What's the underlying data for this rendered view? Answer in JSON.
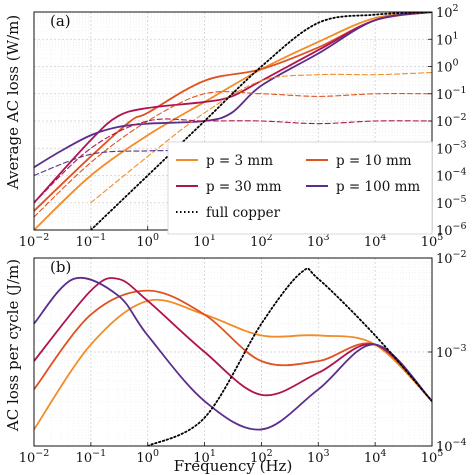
{
  "chart_data": [
    {
      "panel": "(a)",
      "type": "line",
      "ylabel": "Average AC loss (W/m)",
      "xscale": "log",
      "yscale": "log",
      "xlim": [
        0.01,
        100000
      ],
      "ylim": [
        1e-06,
        100
      ],
      "grid": true,
      "x_ticks": [
        "10^-2",
        "10^-1",
        "10^0",
        "10^1",
        "10^2",
        "10^3",
        "10^4",
        "10^5"
      ],
      "y_ticks": [
        "10^-6",
        "10^-5",
        "10^-4",
        "10^-3",
        "10^-2",
        "10^-1",
        "10^0",
        "10^1",
        "10^2"
      ],
      "legend": {
        "placement": "bottom-right",
        "entries": [
          {
            "label": "p = 3 mm",
            "color": "#f28c28",
            "style": "solid"
          },
          {
            "label": "p = 10 mm",
            "color": "#e0521f",
            "style": "solid"
          },
          {
            "label": "p = 30 mm",
            "color": "#b01350",
            "style": "solid"
          },
          {
            "label": "p = 100 mm",
            "color": "#5a2e8a",
            "style": "solid"
          },
          {
            "label": "full copper",
            "color": "#000000",
            "style": "dotted"
          }
        ]
      },
      "series": [
        {
          "name": "p = 3 mm",
          "color": "#f28c28",
          "style": "solid",
          "x": [
            0.01,
            0.1,
            1,
            10,
            100,
            1000,
            10000,
            100000
          ],
          "y": [
            1e-06,
            0.0001,
            0.003,
            0.05,
            0.8,
            8,
            60,
            100
          ]
        },
        {
          "name": "p = 10 mm",
          "color": "#e0521f",
          "style": "solid",
          "x": [
            0.01,
            0.1,
            0.5,
            1,
            10,
            100,
            1000,
            10000,
            100000
          ],
          "y": [
            5e-06,
            0.0005,
            0.01,
            0.02,
            0.3,
            0.8,
            5,
            50,
            100
          ]
        },
        {
          "name": "p = 30 mm",
          "color": "#b01350",
          "style": "solid",
          "x": [
            0.01,
            0.1,
            0.3,
            1,
            10,
            30,
            100,
            1000,
            10000,
            100000
          ],
          "y": [
            1e-05,
            0.002,
            0.015,
            0.03,
            0.05,
            0.08,
            0.3,
            4,
            50,
            100
          ]
        },
        {
          "name": "p = 100 mm",
          "color": "#5a2e8a",
          "style": "solid",
          "x": [
            0.01,
            0.03,
            0.1,
            0.3,
            1,
            10,
            30,
            100,
            1000,
            10000,
            100000
          ],
          "y": [
            0.0002,
            0.0008,
            0.003,
            0.006,
            0.008,
            0.01,
            0.02,
            0.2,
            3,
            50,
            100
          ]
        },
        {
          "name": "p = 3 mm (dashed)",
          "color": "#f28c28",
          "style": "dashed",
          "x": [
            0.1,
            1,
            10,
            100,
            1000,
            10000,
            100000
          ],
          "y": [
            1e-05,
            0.0005,
            0.02,
            0.3,
            0.5,
            0.5,
            0.6
          ]
        },
        {
          "name": "p = 10 mm (dashed)",
          "color": "#e0521f",
          "style": "dashed",
          "x": [
            0.01,
            0.1,
            1,
            10,
            100,
            1000,
            10000,
            100000
          ],
          "y": [
            3e-06,
            0.0003,
            0.01,
            0.1,
            0.1,
            0.08,
            0.1,
            0.1
          ]
        },
        {
          "name": "p = 30 mm (dashed)",
          "color": "#b01350",
          "style": "dashed",
          "x": [
            0.01,
            0.1,
            1,
            10,
            100,
            1000,
            10000,
            100000
          ],
          "y": [
            1e-05,
            0.001,
            0.01,
            0.01,
            0.01,
            0.008,
            0.01,
            0.01
          ]
        },
        {
          "name": "p = 100 mm (dashed)",
          "color": "#5a2e8a",
          "style": "dashed",
          "x": [
            0.01,
            0.1,
            1,
            10,
            100,
            1000,
            10000,
            100000
          ],
          "y": [
            0.0001,
            0.0006,
            0.0008,
            0.0008,
            0.0008,
            0.0008,
            0.0008,
            0.0008
          ]
        },
        {
          "name": "full copper",
          "color": "#000000",
          "style": "dotted",
          "x": [
            0.1,
            1,
            10,
            100,
            1000,
            10000,
            100000
          ],
          "y": [
            1e-06,
            0.0001,
            0.01,
            1,
            40,
            80,
            100
          ]
        }
      ]
    },
    {
      "panel": "(b)",
      "type": "line",
      "xlabel": "Frequency (Hz)",
      "ylabel": "AC loss per cycle (J/m)",
      "xscale": "log",
      "yscale": "log",
      "xlim": [
        0.01,
        100000
      ],
      "ylim": [
        0.0001,
        0.01
      ],
      "grid": true,
      "x_ticks": [
        "10^-2",
        "10^-1",
        "10^0",
        "10^1",
        "10^2",
        "10^3",
        "10^4",
        "10^5"
      ],
      "y_ticks": [
        "10^-4",
        "10^-3",
        "10^-2"
      ],
      "series": [
        {
          "name": "p = 3 mm",
          "color": "#f28c28",
          "style": "solid",
          "x": [
            0.01,
            0.1,
            1,
            10,
            100,
            1000,
            10000,
            100000
          ],
          "y": [
            0.00015,
            0.0012,
            0.0035,
            0.0025,
            0.0015,
            0.0015,
            0.0012,
            0.0003
          ]
        },
        {
          "name": "p = 10 mm",
          "color": "#e0521f",
          "style": "solid",
          "x": [
            0.01,
            0.1,
            1,
            10,
            100,
            1000,
            10000,
            100000
          ],
          "y": [
            0.0004,
            0.0025,
            0.0045,
            0.0025,
            0.0008,
            0.0008,
            0.0012,
            0.0003
          ]
        },
        {
          "name": "p = 30 mm",
          "color": "#b01350",
          "style": "solid",
          "x": [
            0.01,
            0.1,
            0.3,
            1,
            10,
            100,
            1000,
            10000,
            100000
          ],
          "y": [
            0.0008,
            0.0045,
            0.006,
            0.0035,
            0.001,
            0.00035,
            0.0006,
            0.0012,
            0.0003
          ]
        },
        {
          "name": "p = 100 mm",
          "color": "#5a2e8a",
          "style": "solid",
          "x": [
            0.01,
            0.05,
            0.3,
            1,
            10,
            100,
            1000,
            10000,
            100000
          ],
          "y": [
            0.002,
            0.006,
            0.004,
            0.0015,
            0.0003,
            0.00015,
            0.0004,
            0.0012,
            0.0003
          ]
        },
        {
          "name": "full copper",
          "color": "#000000",
          "style": "dotted",
          "x": [
            1,
            10,
            100,
            500,
            1000,
            10000,
            100000
          ],
          "y": [
            0.0001,
            0.0002,
            0.002,
            0.007,
            0.006,
            0.0015,
            0.0003
          ]
        }
      ]
    }
  ],
  "legend_labels": {
    "p3": "p = 3 mm",
    "p10": "p = 10 mm",
    "p30": "p = 30 mm",
    "p100": "p = 100 mm",
    "copper": "full copper"
  },
  "texts": {
    "panel_a": "(a)",
    "panel_b": "(b)",
    "ylabel_a": "Average AC loss (W/m)",
    "ylabel_b": "AC loss per cycle (J/m)",
    "xlabel": "Frequency (Hz)"
  }
}
